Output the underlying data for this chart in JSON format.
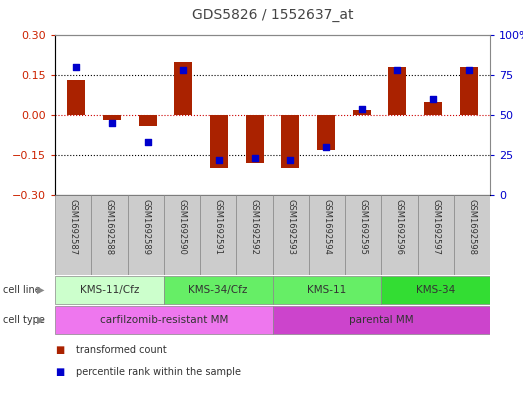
{
  "title": "GDS5826 / 1552637_at",
  "samples": [
    "GSM1692587",
    "GSM1692588",
    "GSM1692589",
    "GSM1692590",
    "GSM1692591",
    "GSM1692592",
    "GSM1692593",
    "GSM1692594",
    "GSM1692595",
    "GSM1692596",
    "GSM1692597",
    "GSM1692598"
  ],
  "transformed_count": [
    0.13,
    -0.02,
    -0.04,
    0.2,
    -0.2,
    -0.18,
    -0.2,
    -0.13,
    0.02,
    0.18,
    0.05,
    0.18
  ],
  "percentile_rank": [
    80,
    45,
    33,
    78,
    22,
    23,
    22,
    30,
    54,
    78,
    60,
    78
  ],
  "ylim_left": [
    -0.3,
    0.3
  ],
  "ylim_right": [
    0,
    100
  ],
  "yticks_left": [
    -0.3,
    -0.15,
    0.0,
    0.15,
    0.3
  ],
  "yticks_right": [
    0,
    25,
    50,
    75,
    100
  ],
  "hlines_dotted": [
    -0.15,
    0.15
  ],
  "hline_zero_color": "#cc0000",
  "bar_color": "#aa2200",
  "dot_color": "#0000cc",
  "bar_width": 0.5,
  "cell_line_groups": [
    {
      "label": "KMS-11/Cfz",
      "start": 0,
      "end": 3,
      "color": "#ccffcc"
    },
    {
      "label": "KMS-34/Cfz",
      "start": 3,
      "end": 6,
      "color": "#66ee66"
    },
    {
      "label": "KMS-11",
      "start": 6,
      "end": 9,
      "color": "#66ee66"
    },
    {
      "label": "KMS-34",
      "start": 9,
      "end": 12,
      "color": "#33dd33"
    }
  ],
  "cell_type_groups": [
    {
      "label": "carfilzomib-resistant MM",
      "start": 0,
      "end": 6,
      "color": "#ee77ee"
    },
    {
      "label": "parental MM",
      "start": 6,
      "end": 12,
      "color": "#cc44cc"
    }
  ],
  "sample_box_color": "#cccccc",
  "sample_box_edge": "#888888",
  "cell_line_label": "cell line",
  "cell_type_label": "cell type",
  "legend_items": [
    {
      "color": "#aa2200",
      "label": "transformed count"
    },
    {
      "color": "#0000cc",
      "label": "percentile rank within the sample"
    }
  ],
  "bg_color": "#ffffff",
  "tick_label_color_left": "#cc2200",
  "tick_label_color_right": "#0000cc",
  "title_color": "#444444",
  "title_fontsize": 10
}
